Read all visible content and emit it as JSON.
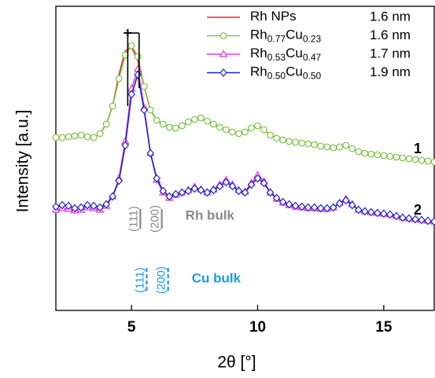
{
  "chart_data": {
    "type": "line",
    "x_label": "2θ [°]",
    "y_label": "Intensity [a.u.]",
    "xlim": [
      2,
      17
    ],
    "xticks": [
      5,
      10,
      15
    ],
    "ylim": [
      0,
      387
    ],
    "x": [
      2,
      2.25,
      2.5,
      2.75,
      3,
      3.25,
      3.5,
      3.75,
      4,
      4.25,
      4.5,
      4.75,
      5,
      5.25,
      5.5,
      5.75,
      6,
      6.25,
      6.5,
      6.75,
      7,
      7.25,
      7.5,
      7.75,
      8,
      8.25,
      8.5,
      8.75,
      9,
      9.25,
      9.5,
      9.75,
      10,
      10.25,
      10.5,
      10.75,
      11,
      11.25,
      11.5,
      11.75,
      12,
      12.25,
      12.5,
      12.75,
      13,
      13.25,
      13.5,
      13.75,
      14,
      14.25,
      14.5,
      14.75,
      15,
      15.25,
      15.5,
      15.75,
      16,
      16.25,
      16.5,
      16.75,
      17
    ],
    "series": [
      {
        "name": "Rh NPs",
        "size": "1.6 nm",
        "color": "#e8262b",
        "marker": "none",
        "values": [
          220,
          220,
          221,
          222,
          223,
          221,
          220,
          225,
          237,
          260,
          300,
          330,
          335,
          318,
          285,
          255,
          242,
          237,
          233,
          232,
          235,
          240,
          243,
          245,
          241,
          237,
          233,
          230,
          227,
          225,
          227,
          232,
          235,
          230,
          223,
          219,
          217,
          215,
          214,
          213,
          212,
          211,
          209,
          208,
          207,
          208,
          210,
          206,
          202,
          200,
          199,
          198,
          197,
          196,
          195,
          194,
          193,
          192,
          191,
          190,
          189
        ]
      },
      {
        "name": "Rh0.77Cu0.23",
        "size": "1.6 nm",
        "color": "#7cc242",
        "marker": "circle",
        "values": [
          220,
          220,
          221,
          222,
          223,
          221,
          220,
          225,
          237,
          260,
          295,
          325,
          337,
          323,
          285,
          255,
          242,
          237,
          233,
          232,
          235,
          240,
          243,
          245,
          241,
          237,
          233,
          230,
          227,
          225,
          227,
          232,
          235,
          230,
          223,
          219,
          217,
          215,
          214,
          213,
          212,
          211,
          209,
          208,
          207,
          208,
          210,
          206,
          202,
          200,
          199,
          198,
          197,
          196,
          195,
          194,
          193,
          192,
          191,
          190,
          189
        ]
      },
      {
        "name": "Rh0.53Cu0.47",
        "size": "1.7 nm",
        "color": "#e838d8",
        "marker": "triangle",
        "values": [
          128,
          130,
          129,
          127,
          128,
          131,
          130,
          128,
          133,
          145,
          168,
          215,
          282,
          307,
          258,
          200,
          166,
          150,
          143,
          147,
          150,
          153,
          157,
          154,
          150,
          154,
          160,
          166,
          160,
          153,
          151,
          162,
          172,
          164,
          150,
          142,
          137,
          134,
          132,
          131,
          130,
          130,
          129,
          129,
          131,
          137,
          142,
          135,
          128,
          126,
          125,
          124,
          123,
          122,
          120,
          118,
          117,
          116,
          115,
          114,
          113
        ]
      },
      {
        "name": "Rh0.50Cu0.50",
        "size": "1.9 nm",
        "color": "#1f22c8",
        "marker": "diamond",
        "values": [
          132,
          134,
          133,
          130,
          131,
          134,
          133,
          131,
          135,
          145,
          165,
          210,
          275,
          300,
          255,
          200,
          168,
          152,
          145,
          148,
          150,
          152,
          155,
          153,
          150,
          153,
          158,
          163,
          158,
          152,
          150,
          160,
          168,
          162,
          150,
          143,
          138,
          135,
          133,
          132,
          131,
          131,
          130,
          130,
          131,
          136,
          140,
          134,
          128,
          126,
          125,
          124,
          123,
          122,
          120,
          118,
          117,
          116,
          115,
          114,
          113
        ]
      }
    ],
    "curve_labels": [
      "1",
      "2"
    ],
    "shift_markers": [
      4.85,
      5.3
    ],
    "reference_lines": [
      {
        "name": "Rh bulk",
        "color": "#8a8a8a",
        "dashed": false,
        "peaks": [
          {
            "x": 5.35,
            "label": "(111)"
          },
          {
            "x": 6.2,
            "label": "(200)"
          }
        ]
      },
      {
        "name": "Cu bulk",
        "color": "#1e9be0",
        "dashed": true,
        "peaks": [
          {
            "x": 5.6,
            "label": "(111)"
          },
          {
            "x": 6.45,
            "label": "(200)"
          }
        ]
      }
    ]
  }
}
